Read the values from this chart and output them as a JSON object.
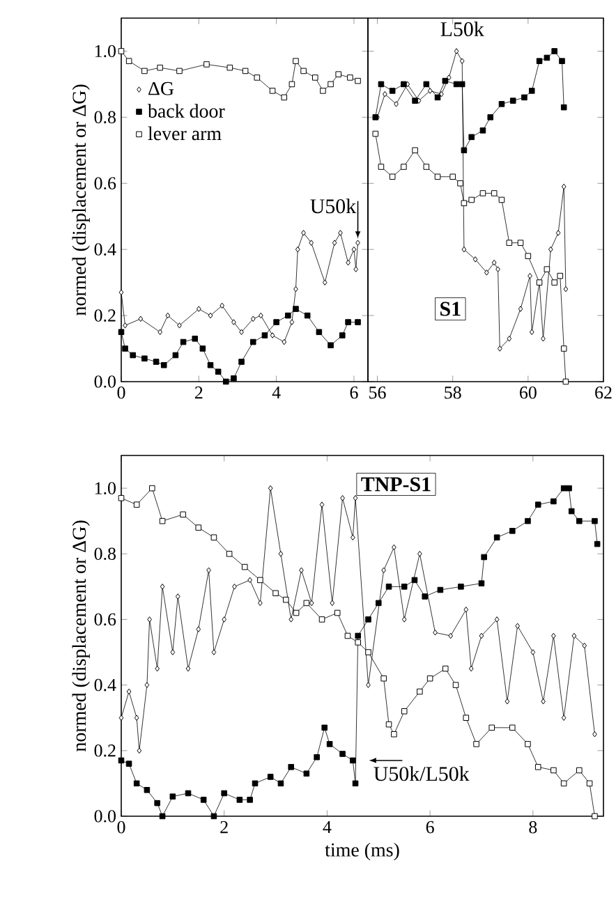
{
  "chart_data": [
    {
      "type": "line",
      "ylabel": "normed (displacement or ΔG)",
      "xlim": [
        0,
        6.36
      ],
      "ylim": [
        0,
        1.1
      ],
      "xticks": [
        0,
        2,
        4,
        6
      ],
      "yticks": [
        {
          "value": 0,
          "label": "0.0"
        },
        0.2,
        0.4,
        0.6,
        0.8,
        {
          "value": 1,
          "label": "1.0"
        }
      ],
      "legend": "top left",
      "line_style": "solid",
      "annotations": [
        {
          "text": "U50k",
          "x": 6.1,
          "y": 0.42
        }
      ],
      "series": [
        {
          "name": "ΔG",
          "color": "#ffffff",
          "marker": "diamond",
          "x": [
            0,
            0.1,
            0.5,
            1.0,
            1.2,
            1.5,
            2.0,
            2.3,
            2.6,
            2.9,
            3.1,
            3.4,
            3.6,
            3.9,
            4.2,
            4.4,
            4.5,
            4.55,
            4.7,
            4.9,
            5.25,
            5.5,
            5.65,
            5.85,
            6.0,
            6.05,
            6.1
          ],
          "values": [
            0.27,
            0.17,
            0.19,
            0.15,
            0.2,
            0.17,
            0.22,
            0.2,
            0.23,
            0.18,
            0.15,
            0.19,
            0.2,
            0.14,
            0.12,
            0.18,
            0.28,
            0.4,
            0.45,
            0.42,
            0.3,
            0.42,
            0.45,
            0.36,
            0.4,
            0.34,
            0.42
          ]
        },
        {
          "name": "back door",
          "color": "#000000",
          "marker": "square",
          "x": [
            0,
            0.1,
            0.3,
            0.6,
            0.9,
            1.1,
            1.4,
            1.6,
            1.9,
            2.1,
            2.3,
            2.5,
            2.7,
            2.9,
            3.1,
            3.4,
            3.7,
            4.0,
            4.3,
            4.5,
            4.8,
            5.1,
            5.4,
            5.7,
            5.85,
            6.1
          ],
          "values": [
            0.15,
            0.1,
            0.08,
            0.07,
            0.06,
            0.05,
            0.08,
            0.12,
            0.13,
            0.1,
            0.05,
            0.03,
            0.0,
            0.01,
            0.06,
            0.12,
            0.14,
            0.18,
            0.2,
            0.22,
            0.2,
            0.15,
            0.11,
            0.14,
            0.18,
            0.18
          ]
        },
        {
          "name": "lever arm",
          "color": "#ffffff",
          "marker": "square",
          "x": [
            0,
            0.2,
            0.6,
            1.0,
            1.5,
            2.2,
            2.8,
            3.2,
            3.5,
            3.9,
            4.2,
            4.4,
            4.5,
            4.7,
            5.0,
            5.2,
            5.4,
            5.6,
            5.9,
            6.1
          ],
          "values": [
            1.0,
            0.97,
            0.94,
            0.95,
            0.94,
            0.96,
            0.95,
            0.94,
            0.92,
            0.88,
            0.86,
            0.9,
            0.97,
            0.94,
            0.92,
            0.88,
            0.9,
            0.93,
            0.92,
            0.91
          ]
        }
      ]
    },
    {
      "type": "line",
      "xlim": [
        55.75,
        62
      ],
      "ylim": [
        0,
        1.1
      ],
      "xticks": [
        56,
        58,
        60,
        62
      ],
      "yticks": [
        {
          "value": 0,
          "label": null
        },
        {
          "value": 0.2,
          "label": null
        },
        {
          "value": 0.4,
          "label": null
        },
        {
          "value": 0.6,
          "label": null
        },
        {
          "value": 0.8,
          "label": null
        },
        {
          "value": 1,
          "label": null
        }
      ],
      "tick_labels": "x",
      "line_style": "solid",
      "annotations": [
        "L50k",
        "S1"
      ],
      "series": [
        {
          "color": "#ffffff",
          "marker": "diamond",
          "x": [
            56.0,
            56.2,
            56.5,
            56.8,
            57.1,
            57.4,
            57.7,
            57.9,
            58.1,
            58.25,
            58.3,
            58.6,
            58.9,
            59.1,
            59.2,
            59.25,
            59.5,
            59.8,
            60.05,
            60.1,
            60.3,
            60.4,
            60.6,
            60.8,
            60.95,
            61.0
          ],
          "values": [
            0.8,
            0.87,
            0.84,
            0.9,
            0.85,
            0.88,
            0.87,
            0.92,
            1.0,
            0.97,
            0.4,
            0.37,
            0.33,
            0.36,
            0.34,
            0.1,
            0.13,
            0.22,
            0.32,
            0.15,
            0.3,
            0.13,
            0.4,
            0.45,
            0.59,
            0.28
          ]
        },
        {
          "color": "#000000",
          "marker": "square",
          "x": [
            55.95,
            56.1,
            56.4,
            56.7,
            57.0,
            57.3,
            57.6,
            57.8,
            58.1,
            58.25,
            58.3,
            58.5,
            58.8,
            59.0,
            59.3,
            59.6,
            59.9,
            60.1,
            60.3,
            60.5,
            60.7,
            60.9,
            60.95
          ],
          "values": [
            0.8,
            0.9,
            0.88,
            0.9,
            0.85,
            0.9,
            0.86,
            0.91,
            0.9,
            0.9,
            0.7,
            0.74,
            0.76,
            0.8,
            0.84,
            0.85,
            0.86,
            0.88,
            0.97,
            0.98,
            1.0,
            0.97,
            0.83
          ]
        },
        {
          "color": "#ffffff",
          "marker": "square",
          "x": [
            55.95,
            56.1,
            56.4,
            56.7,
            57.0,
            57.3,
            57.6,
            58.0,
            58.2,
            58.3,
            58.5,
            58.8,
            59.1,
            59.3,
            59.5,
            59.8,
            60.0,
            60.3,
            60.5,
            60.7,
            60.85,
            60.95,
            61.0
          ],
          "values": [
            0.75,
            0.65,
            0.62,
            0.65,
            0.7,
            0.65,
            0.62,
            0.62,
            0.6,
            0.54,
            0.55,
            0.57,
            0.57,
            0.55,
            0.42,
            0.42,
            0.38,
            0.3,
            0.34,
            0.3,
            0.32,
            0.1,
            0.0
          ]
        }
      ]
    },
    {
      "type": "line",
      "xlabel": "time (ms)",
      "ylabel": "normed (displacement or ΔG)",
      "xlim": [
        0,
        9.37
      ],
      "ylim": [
        0,
        1.1
      ],
      "xticks": [
        0,
        2,
        4,
        6,
        8
      ],
      "yticks": [
        {
          "value": 0,
          "label": "0.0"
        },
        0.2,
        0.4,
        0.6,
        0.8,
        {
          "value": 1,
          "label": "1.0"
        }
      ],
      "line_style": "solid",
      "annotations": [
        "TNP-S1",
        {
          "text": "U50k/L50k",
          "x": 4.65,
          "y": 0.17
        }
      ],
      "series": [
        {
          "color": "#ffffff",
          "marker": "diamond",
          "x": [
            0,
            0.15,
            0.3,
            0.35,
            0.5,
            0.55,
            0.7,
            0.8,
            1.0,
            1.1,
            1.3,
            1.5,
            1.7,
            1.8,
            2.0,
            2.2,
            2.5,
            2.7,
            2.9,
            3.1,
            3.3,
            3.5,
            3.7,
            3.9,
            4.1,
            4.3,
            4.5,
            4.55,
            4.8,
            5.1,
            5.3,
            5.5,
            5.8,
            6.1,
            6.4,
            6.7,
            6.8,
            7.0,
            7.3,
            7.5,
            7.7,
            8.0,
            8.2,
            8.4,
            8.6,
            8.8,
            9.0,
            9.2
          ],
          "values": [
            0.3,
            0.38,
            0.3,
            0.2,
            0.4,
            0.6,
            0.45,
            0.7,
            0.5,
            0.67,
            0.45,
            0.57,
            0.75,
            0.5,
            0.6,
            0.7,
            0.72,
            0.65,
            1.0,
            0.8,
            0.6,
            0.75,
            0.65,
            0.95,
            0.65,
            0.97,
            0.85,
            0.97,
            0.4,
            0.75,
            0.82,
            0.6,
            0.8,
            0.56,
            0.55,
            0.63,
            0.45,
            0.55,
            0.6,
            0.35,
            0.58,
            0.5,
            0.35,
            0.55,
            0.3,
            0.55,
            0.52,
            0.25
          ]
        },
        {
          "color": "#000000",
          "marker": "square",
          "x": [
            0,
            0.15,
            0.3,
            0.5,
            0.7,
            0.8,
            1.0,
            1.3,
            1.6,
            1.8,
            2.0,
            2.3,
            2.5,
            2.6,
            2.9,
            3.1,
            3.3,
            3.6,
            3.8,
            3.95,
            4.05,
            4.3,
            4.5,
            4.55,
            4.6,
            4.8,
            5.0,
            5.2,
            5.5,
            5.7,
            5.9,
            6.2,
            6.6,
            7.0,
            7.05,
            7.3,
            7.6,
            7.9,
            8.1,
            8.4,
            8.6,
            8.7,
            8.75,
            8.9,
            9.2,
            9.25
          ],
          "values": [
            0.17,
            0.16,
            0.1,
            0.08,
            0.04,
            0.0,
            0.06,
            0.07,
            0.05,
            0.0,
            0.07,
            0.05,
            0.05,
            0.1,
            0.12,
            0.1,
            0.15,
            0.13,
            0.18,
            0.27,
            0.22,
            0.19,
            0.17,
            0.1,
            0.55,
            0.6,
            0.65,
            0.7,
            0.7,
            0.72,
            0.67,
            0.69,
            0.7,
            0.71,
            0.79,
            0.85,
            0.87,
            0.9,
            0.95,
            0.96,
            1.0,
            1.0,
            0.93,
            0.9,
            0.9,
            0.83
          ]
        },
        {
          "color": "#ffffff",
          "marker": "square",
          "x": [
            0,
            0.3,
            0.6,
            0.8,
            1.2,
            1.5,
            1.8,
            2.1,
            2.4,
            2.7,
            3.0,
            3.2,
            3.4,
            3.6,
            3.9,
            4.2,
            4.4,
            4.6,
            4.8,
            5.1,
            5.2,
            5.3,
            5.5,
            5.8,
            6.0,
            6.3,
            6.5,
            6.7,
            6.9,
            7.2,
            7.6,
            7.9,
            8.1,
            8.4,
            8.6,
            8.9,
            9.1,
            9.2
          ],
          "values": [
            0.97,
            0.95,
            1.0,
            0.9,
            0.92,
            0.88,
            0.85,
            0.8,
            0.76,
            0.72,
            0.68,
            0.66,
            0.62,
            0.65,
            0.6,
            0.62,
            0.55,
            0.53,
            0.5,
            0.42,
            0.28,
            0.25,
            0.32,
            0.38,
            0.42,
            0.45,
            0.4,
            0.3,
            0.22,
            0.27,
            0.27,
            0.22,
            0.15,
            0.14,
            0.1,
            0.14,
            0.1,
            0.0
          ]
        }
      ]
    }
  ]
}
